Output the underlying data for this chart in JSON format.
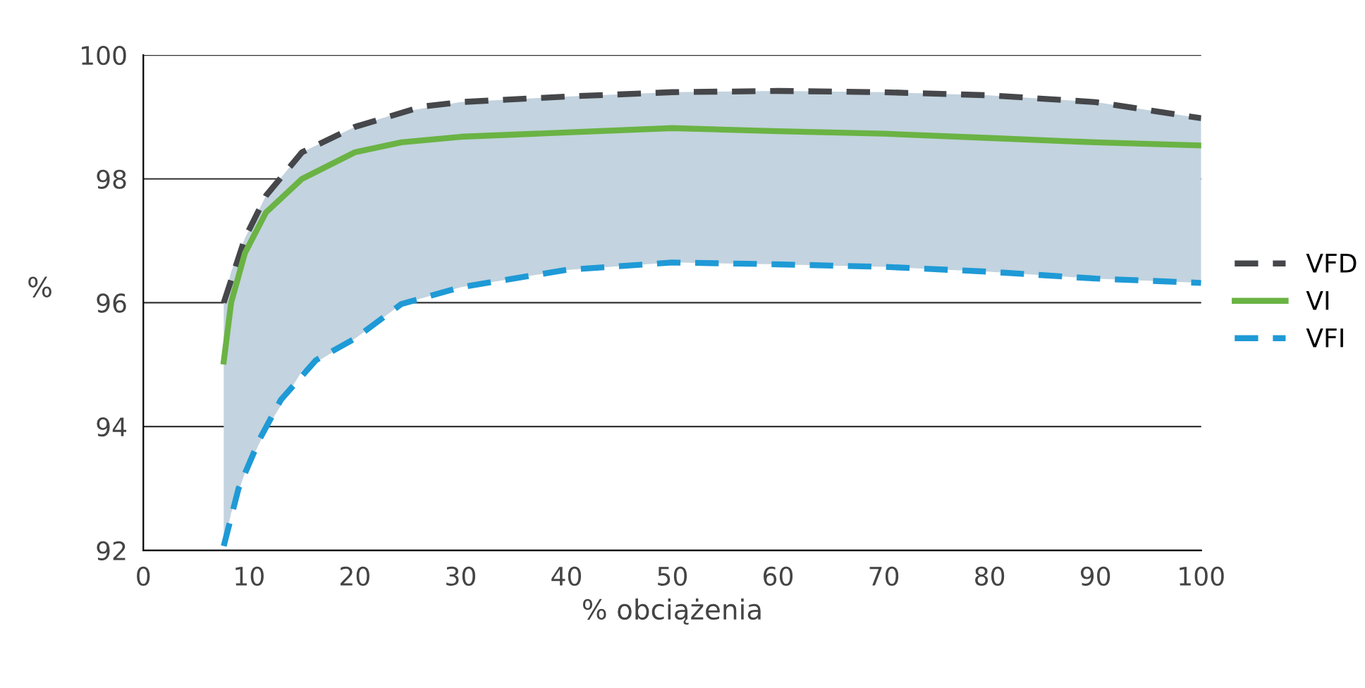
{
  "chart_data": {
    "type": "line",
    "xlabel": "% obciążenia",
    "ylabel": "%",
    "xlim": [
      0,
      100
    ],
    "ylim": [
      92,
      100
    ],
    "xticks": [
      0,
      10,
      20,
      30,
      40,
      50,
      60,
      70,
      80,
      90,
      100
    ],
    "yticks": [
      92,
      94,
      96,
      98,
      100
    ],
    "grid": "y",
    "legend": "right",
    "marker": "none",
    "series": [
      {
        "name": "VFD",
        "color": "#45474a",
        "line_style": "dashed",
        "x": [
          7.6,
          9.6,
          11.6,
          15,
          20,
          26.4,
          30,
          40,
          50,
          60,
          70,
          80,
          90,
          100
        ],
        "values": [
          96.0,
          97.04,
          97.73,
          98.43,
          98.84,
          99.17,
          99.24,
          99.33,
          99.4,
          99.42,
          99.4,
          99.35,
          99.24,
          98.98
        ]
      },
      {
        "name": "VI",
        "color": "#6ab344",
        "line_style": "solid",
        "x": [
          7.6,
          8.3,
          9.6,
          11.6,
          15,
          20,
          24.4,
          30,
          40,
          50,
          60,
          70,
          80,
          90,
          100
        ],
        "values": [
          95.05,
          96.0,
          96.8,
          97.46,
          98.0,
          98.43,
          98.59,
          98.68,
          98.75,
          98.82,
          98.77,
          98.73,
          98.66,
          98.59,
          98.54
        ],
        "lower": [
          92.07,
          92.6,
          93.25,
          93.95,
          94.9,
          95.42,
          95.98,
          96.25,
          96.53,
          96.65,
          96.62,
          96.58,
          96.5,
          96.39,
          96.32
        ],
        "upper": [
          96.0,
          96.5,
          97.04,
          97.73,
          98.43,
          98.84,
          99.08,
          99.24,
          99.33,
          99.4,
          99.42,
          99.4,
          99.35,
          99.24,
          98.98
        ]
      },
      {
        "name": "VFI",
        "color": "#1e9ad6",
        "line_style": "dashed",
        "x": [
          7.6,
          9.0,
          11,
          13,
          16.3,
          20,
          24.4,
          30,
          40,
          50,
          60,
          70,
          80,
          90,
          100
        ],
        "values": [
          92.07,
          93.0,
          93.8,
          94.43,
          95.07,
          95.42,
          95.98,
          96.25,
          96.53,
          96.65,
          96.62,
          96.58,
          96.5,
          96.39,
          96.32
        ]
      }
    ]
  }
}
